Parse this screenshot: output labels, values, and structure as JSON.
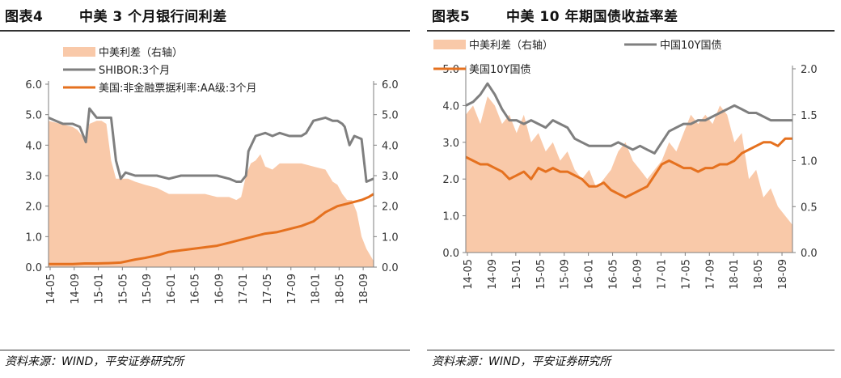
{
  "colors": {
    "spread": "#f9c9a9",
    "china": "#7f7f7f",
    "us": "#e5711f",
    "axis": "#7f7f7f"
  },
  "chart_data": [
    {
      "type": "line",
      "title": "中美 3 个月银行间利差",
      "figure_label": "图表4",
      "source": "资料来源：WIND，平安证券研究所",
      "x": [
        "14-05",
        "14-09",
        "15-01",
        "15-05",
        "15-09",
        "16-01",
        "16-05",
        "16-09",
        "17-01",
        "17-05",
        "17-09",
        "18-01",
        "18-05",
        "18-09"
      ],
      "xlim": [
        0,
        13.5
      ],
      "ylim": [
        0,
        6
      ],
      "y2lim": [
        0,
        6
      ],
      "yticks": [
        "0.0",
        "1.0",
        "2.0",
        "3.0",
        "4.0",
        "5.0",
        "6.0"
      ],
      "y2ticks": [
        "0.0",
        "1.0",
        "2.0",
        "3.0",
        "4.0",
        "5.0",
        "6.0"
      ],
      "legend_position": "top-left",
      "series": [
        {
          "name": "中美利差（右轴）",
          "type": "area",
          "axis": "right",
          "x": [
            0,
            0.5,
            1,
            1.2,
            1.4,
            1.5,
            1.7,
            2.0,
            2.2,
            2.4,
            2.6,
            2.8,
            3.0,
            3.3,
            3.6,
            4.0,
            4.5,
            5.0,
            5.5,
            6.0,
            6.5,
            7.0,
            7.5,
            7.8,
            8.0,
            8.2,
            8.4,
            8.6,
            8.8,
            9.0,
            9.3,
            9.6,
            10.0,
            10.5,
            11.0,
            11.5,
            11.8,
            12.0,
            12.2,
            12.4,
            12.6,
            12.8,
            13.0,
            13.2,
            13.5
          ],
          "values": [
            4.8,
            4.7,
            4.6,
            4.5,
            4.3,
            4.1,
            4.7,
            4.8,
            4.8,
            4.7,
            3.5,
            2.9,
            2.9,
            2.9,
            2.8,
            2.7,
            2.6,
            2.4,
            2.4,
            2.4,
            2.4,
            2.3,
            2.3,
            2.2,
            2.3,
            3.0,
            3.4,
            3.5,
            3.7,
            3.3,
            3.2,
            3.4,
            3.4,
            3.4,
            3.3,
            3.2,
            2.8,
            2.7,
            2.4,
            2.2,
            2.2,
            1.8,
            1.0,
            0.6,
            0.2
          ]
        },
        {
          "name": "SHIBOR:3个月",
          "type": "line",
          "axis": "left",
          "x": [
            0,
            0.3,
            0.6,
            1.0,
            1.3,
            1.5,
            1.55,
            1.7,
            2.0,
            2.4,
            2.6,
            2.8,
            3.0,
            3.2,
            3.6,
            4.0,
            4.5,
            5.0,
            5.5,
            6.0,
            6.5,
            7.0,
            7.5,
            7.8,
            8.0,
            8.2,
            8.3,
            8.6,
            9.0,
            9.3,
            9.6,
            10.0,
            10.5,
            10.7,
            11.0,
            11.5,
            11.8,
            12.0,
            12.2,
            12.3,
            12.5,
            12.7,
            13.0,
            13.2,
            13.5
          ],
          "values": [
            4.9,
            4.8,
            4.7,
            4.7,
            4.6,
            4.2,
            4.1,
            5.2,
            4.9,
            4.9,
            4.9,
            3.5,
            2.9,
            3.1,
            3.0,
            3.0,
            3.0,
            2.9,
            3.0,
            3.0,
            3.0,
            3.0,
            2.9,
            2.8,
            2.8,
            3.0,
            3.8,
            4.3,
            4.4,
            4.3,
            4.4,
            4.3,
            4.3,
            4.4,
            4.8,
            4.9,
            4.8,
            4.8,
            4.7,
            4.6,
            4.0,
            4.3,
            4.2,
            2.8,
            2.9
          ]
        },
        {
          "name": "美国:非金融票据利率:AA级:3个月",
          "type": "line",
          "axis": "left",
          "x": [
            0,
            0.5,
            1,
            1.5,
            2,
            2.5,
            3.0,
            3.3,
            3.6,
            4.0,
            4.3,
            4.6,
            5.0,
            5.5,
            6.0,
            6.5,
            7.0,
            7.5,
            8.0,
            8.5,
            9.0,
            9.5,
            10.0,
            10.5,
            11.0,
            11.5,
            12.0,
            12.5,
            13.0,
            13.3,
            13.5
          ],
          "values": [
            0.1,
            0.1,
            0.1,
            0.12,
            0.12,
            0.13,
            0.15,
            0.2,
            0.25,
            0.3,
            0.35,
            0.4,
            0.5,
            0.55,
            0.6,
            0.65,
            0.7,
            0.8,
            0.9,
            1.0,
            1.1,
            1.15,
            1.25,
            1.35,
            1.5,
            1.8,
            2.0,
            2.1,
            2.2,
            2.3,
            2.4
          ]
        }
      ]
    },
    {
      "type": "line",
      "title": "中美 10 年期国债收益率差",
      "figure_label": "图表5",
      "source": "资料来源：WIND，平安证券研究所",
      "x": [
        "14-05",
        "14-09",
        "15-01",
        "15-05",
        "15-09",
        "16-01",
        "16-05",
        "16-09",
        "17-01",
        "17-05",
        "17-09",
        "18-01",
        "18-05",
        "18-09"
      ],
      "xlim": [
        0,
        13.5
      ],
      "ylim": [
        0,
        5
      ],
      "y2lim": [
        0,
        2
      ],
      "yticks": [
        "0.0",
        "1.0",
        "2.0",
        "3.0",
        "4.0",
        "5.0"
      ],
      "y2ticks": [
        "0.0",
        "0.5",
        "1.0",
        "1.5",
        "2.0"
      ],
      "legend_position": "top-left",
      "series": [
        {
          "name": "中美利差（右轴）",
          "type": "area",
          "axis": "right",
          "x": [
            0,
            0.3,
            0.6,
            0.9,
            1.2,
            1.5,
            1.8,
            2.1,
            2.4,
            2.7,
            3.0,
            3.3,
            3.6,
            3.9,
            4.2,
            4.5,
            4.8,
            5.1,
            5.4,
            5.7,
            6.0,
            6.3,
            6.6,
            6.9,
            7.2,
            7.5,
            7.8,
            8.1,
            8.4,
            8.7,
            9.0,
            9.3,
            9.6,
            9.9,
            10.2,
            10.5,
            10.8,
            11.1,
            11.4,
            11.7,
            12.0,
            12.3,
            12.6,
            12.9,
            13.2,
            13.5
          ],
          "values": [
            1.5,
            1.6,
            1.4,
            1.7,
            1.6,
            1.4,
            1.5,
            1.3,
            1.5,
            1.2,
            1.3,
            1.1,
            1.2,
            1.0,
            1.1,
            0.9,
            0.8,
            0.9,
            0.7,
            0.8,
            0.9,
            1.1,
            1.2,
            1.0,
            0.9,
            0.8,
            0.9,
            1.0,
            1.2,
            1.1,
            1.3,
            1.5,
            1.4,
            1.5,
            1.4,
            1.6,
            1.5,
            1.2,
            1.3,
            0.8,
            0.9,
            0.6,
            0.7,
            0.5,
            0.4,
            0.3
          ]
        },
        {
          "name": "中国10Y国债",
          "type": "line",
          "axis": "left",
          "x": [
            0,
            0.3,
            0.6,
            0.9,
            1.2,
            1.5,
            1.8,
            2.1,
            2.4,
            2.7,
            3.0,
            3.3,
            3.6,
            3.9,
            4.2,
            4.5,
            4.8,
            5.1,
            5.4,
            5.7,
            6.0,
            6.3,
            6.6,
            6.9,
            7.2,
            7.5,
            7.8,
            8.1,
            8.4,
            8.7,
            9.0,
            9.3,
            9.6,
            9.9,
            10.2,
            10.5,
            10.8,
            11.1,
            11.4,
            11.7,
            12.0,
            12.3,
            12.6,
            12.9,
            13.2,
            13.5
          ],
          "values": [
            4.0,
            4.1,
            4.3,
            4.6,
            4.3,
            3.9,
            3.6,
            3.6,
            3.5,
            3.6,
            3.5,
            3.4,
            3.6,
            3.5,
            3.4,
            3.1,
            3.0,
            2.9,
            2.9,
            2.9,
            2.9,
            3.0,
            2.9,
            2.8,
            2.9,
            2.8,
            2.7,
            3.0,
            3.3,
            3.4,
            3.5,
            3.5,
            3.6,
            3.6,
            3.7,
            3.8,
            3.9,
            4.0,
            3.9,
            3.8,
            3.8,
            3.7,
            3.6,
            3.6,
            3.6,
            3.6
          ]
        },
        {
          "name": "美国10Y国债",
          "type": "line",
          "axis": "left",
          "x": [
            0,
            0.3,
            0.6,
            0.9,
            1.2,
            1.5,
            1.8,
            2.1,
            2.4,
            2.7,
            3.0,
            3.3,
            3.6,
            3.9,
            4.2,
            4.5,
            4.8,
            5.1,
            5.4,
            5.7,
            6.0,
            6.3,
            6.6,
            6.9,
            7.2,
            7.5,
            7.8,
            8.1,
            8.4,
            8.7,
            9.0,
            9.3,
            9.6,
            9.9,
            10.2,
            10.5,
            10.8,
            11.1,
            11.4,
            11.7,
            12.0,
            12.3,
            12.6,
            12.9,
            13.2,
            13.5
          ],
          "values": [
            2.6,
            2.5,
            2.4,
            2.4,
            2.3,
            2.2,
            2.0,
            2.1,
            2.2,
            2.0,
            2.3,
            2.2,
            2.3,
            2.2,
            2.2,
            2.1,
            2.0,
            1.8,
            1.8,
            1.9,
            1.7,
            1.6,
            1.5,
            1.6,
            1.7,
            1.8,
            2.1,
            2.4,
            2.5,
            2.4,
            2.3,
            2.3,
            2.2,
            2.3,
            2.3,
            2.4,
            2.4,
            2.5,
            2.7,
            2.8,
            2.9,
            3.0,
            3.0,
            2.9,
            3.1,
            3.1
          ]
        }
      ]
    }
  ]
}
